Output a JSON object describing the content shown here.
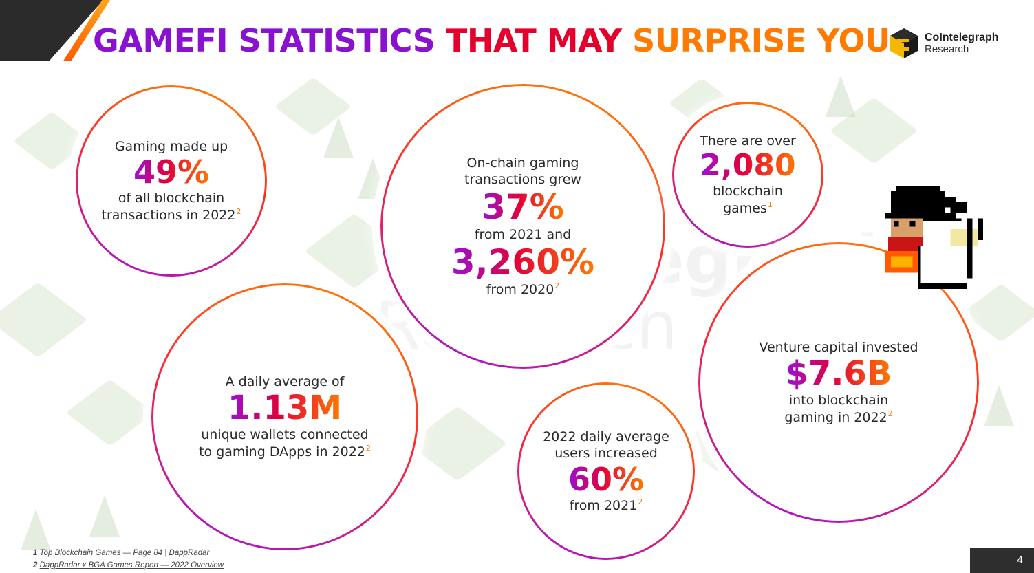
{
  "title": {
    "part1": "GAMEFI STATISTICS",
    "part2": "THAT MAY",
    "part3": "SURPRISE YOU"
  },
  "logo": {
    "brand": "CoIntelegraph",
    "sub": "Research"
  },
  "watermark": {
    "line1": "CoIntelegraph",
    "line2": "Research"
  },
  "stats": {
    "c1": {
      "pre": "Gaming made up",
      "value": "49%",
      "post1": "of all blockchain",
      "post2": "transactions in 2022",
      "ref": "2"
    },
    "c2": {
      "pre1": "On-chain gaming",
      "pre2": "transactions grew",
      "value1": "37%",
      "mid": "from 2021 and",
      "value2": "3,260%",
      "post": "from 2020",
      "ref": "2"
    },
    "c3": {
      "pre": "There are over",
      "value": "2,080",
      "post1": "blockchain",
      "post2": "games",
      "ref": "1"
    },
    "c4": {
      "pre": "A daily average of",
      "value": "1.13M",
      "post1": "unique wallets connected",
      "post2": "to gaming DApps in 2022",
      "ref": "2"
    },
    "c5": {
      "pre1": "2022 daily average",
      "pre2": "users increased",
      "value": "60%",
      "post": "from 2021",
      "ref": "2"
    },
    "c6": {
      "pre": "Venture capital invested",
      "value": "$7.6B",
      "post1": "into blockchain",
      "post2": "gaming in 2022",
      "ref": "2"
    }
  },
  "footnotes": [
    {
      "num": "1",
      "text": "Top Blockchain Games — Page 84 | DappRadar"
    },
    {
      "num": "2",
      "text": "DappRadar x BGA Games Report — 2022 Overview"
    }
  ],
  "page_number": "4",
  "colors": {
    "purple": "#8a12cf",
    "red": "#e4002b",
    "orange": "#ff7a00",
    "dark": "#2b2b2b"
  }
}
